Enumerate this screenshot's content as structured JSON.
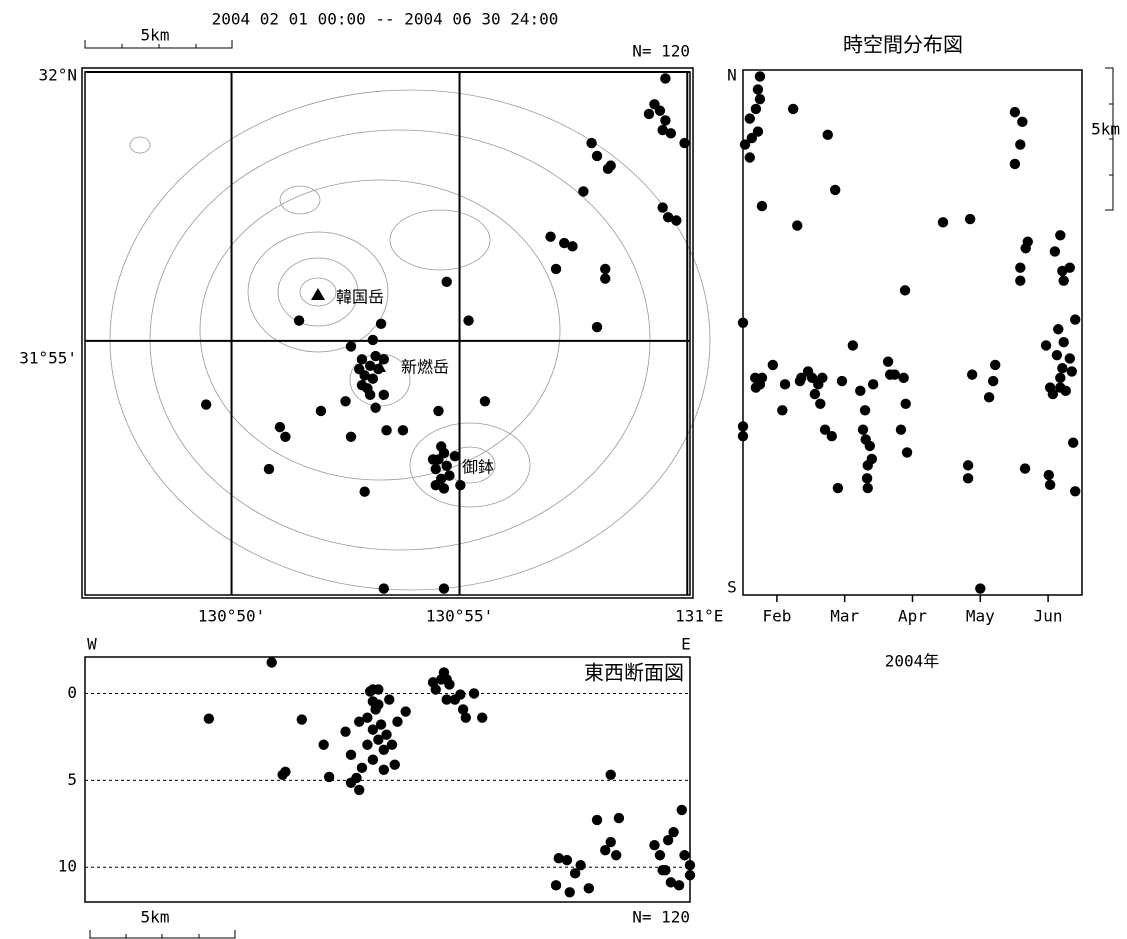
{
  "chart_data": [
    {
      "type": "scatter",
      "title": "2004 02 01 00:00 -- 2004 06 30 24:00",
      "count_label": "N= 120",
      "scale_label": "5km",
      "annotations": [
        "韓国岳",
        "新燃岳",
        "御鉢"
      ],
      "color": "#000000",
      "grid": true,
      "xlim": [
        130.7797,
        131.001
      ],
      "ylim": [
        31.838,
        32.0
      ],
      "xticks": [
        {
          "value": 130.8333,
          "label": "130°50'"
        },
        {
          "value": 130.9167,
          "label": "130°55'"
        },
        {
          "value": 131.0,
          "label": "131°E"
        }
      ],
      "yticks": [
        {
          "value": 31.9167,
          "label": "31°55'"
        },
        {
          "value": 32.0,
          "label": "32°N"
        }
      ],
      "x": [
        130.992,
        130.988,
        130.99,
        130.986,
        130.992,
        130.991,
        130.994,
        130.999,
        130.965,
        130.967,
        130.972,
        130.971,
        130.962,
        130.991,
        130.993,
        130.996,
        130.95,
        130.955,
        130.958,
        130.952,
        130.97,
        130.97,
        130.967,
        130.858,
        130.888,
        130.912,
        130.92,
        130.877,
        130.88,
        130.881,
        130.882,
        130.884,
        130.886,
        130.885,
        130.883,
        130.887,
        130.889,
        130.881,
        130.884,
        130.886,
        130.889,
        130.875,
        130.89,
        130.896,
        130.885,
        130.824,
        130.866,
        130.877,
        130.851,
        130.853,
        130.847,
        130.882,
        130.909,
        130.926,
        130.91,
        130.911,
        130.909,
        130.908,
        130.912,
        130.91,
        130.913,
        130.908,
        130.911,
        130.917,
        130.907,
        130.915,
        130.889,
        130.911
      ],
      "y": [
        31.998,
        31.99,
        31.988,
        31.987,
        31.985,
        31.982,
        31.981,
        31.978,
        31.978,
        31.974,
        31.971,
        31.97,
        31.963,
        31.958,
        31.955,
        31.954,
        31.949,
        31.947,
        31.946,
        31.939,
        31.939,
        31.936,
        31.921,
        31.923,
        31.922,
        31.935,
        31.923,
        31.915,
        31.908,
        31.911,
        31.906,
        31.909,
        31.912,
        31.905,
        31.902,
        31.908,
        31.911,
        31.903,
        31.9,
        31.896,
        31.9,
        31.898,
        31.889,
        31.889,
        31.917,
        31.897,
        31.895,
        31.887,
        31.89,
        31.887,
        31.877,
        31.87,
        31.895,
        31.898,
        31.884,
        31.882,
        31.88,
        31.877,
        31.878,
        31.874,
        31.875,
        31.872,
        31.871,
        31.872,
        31.88,
        31.881,
        31.84,
        31.84
      ]
    },
    {
      "type": "scatter",
      "title": "時空間分布図",
      "xlabel": "2004年",
      "y_end_labels": [
        "N",
        "S"
      ],
      "scale_label": "5km",
      "color": "#000000",
      "xlim": [
        2,
        7
      ],
      "ylim": [
        31.838,
        32.0
      ],
      "xticks": [
        {
          "value": 2.5,
          "label": "Feb"
        },
        {
          "value": 3.5,
          "label": "Mar"
        },
        {
          "value": 4.5,
          "label": "Apr"
        },
        {
          "value": 5.5,
          "label": "May"
        },
        {
          "value": 6.5,
          "label": "Jun"
        }
      ],
      "x": [
        2.25,
        2.22,
        2.25,
        2.1,
        2.19,
        2.03,
        2.13,
        2.22,
        2.1,
        2.28,
        2.0,
        2.0,
        2.0,
        2.18,
        2.25,
        2.28,
        2.19,
        2.74,
        2.8,
        2.84,
        2.62,
        2.58,
        2.44,
        2.86,
        3.25,
        3.36,
        3.02,
        3.11,
        3.17,
        3.06,
        3.14,
        3.21,
        3.31,
        3.4,
        2.96,
        3.62,
        3.46,
        3.73,
        3.8,
        3.81,
        3.87,
        3.9,
        3.84,
        3.83,
        3.84,
        3.92,
        3.77,
        4.14,
        4.17,
        4.24,
        4.37,
        4.4,
        4.33,
        4.42,
        4.39,
        4.95,
        5.35,
        5.38,
        5.32,
        5.32,
        5.63,
        5.69,
        5.72,
        5.5,
        6.01,
        6.12,
        6.01,
        6.09,
        6.2,
        6.17,
        6.09,
        6.09,
        6.16,
        6.47,
        6.51,
        6.53,
        6.68,
        6.6,
        6.71,
        6.73,
        6.82,
        6.9,
        6.65,
        6.63,
        6.73,
        6.71,
        6.82,
        6.68,
        6.53,
        6.57,
        6.68,
        6.85,
        6.76,
        6.87,
        6.9
      ],
      "y": [
        31.998,
        31.994,
        31.991,
        31.985,
        31.988,
        31.977,
        31.979,
        31.981,
        31.973,
        31.958,
        31.922,
        31.89,
        31.887,
        31.905,
        31.903,
        31.905,
        31.902,
        31.988,
        31.952,
        31.904,
        31.903,
        31.895,
        31.909,
        31.905,
        31.98,
        31.963,
        31.905,
        31.903,
        31.905,
        31.9,
        31.897,
        31.889,
        31.887,
        31.871,
        31.907,
        31.915,
        31.904,
        31.901,
        31.895,
        31.886,
        31.884,
        31.88,
        31.878,
        31.874,
        31.871,
        31.903,
        31.889,
        31.91,
        31.906,
        31.906,
        31.905,
        31.897,
        31.889,
        31.882,
        31.932,
        31.953,
        31.954,
        31.906,
        31.878,
        31.874,
        31.899,
        31.904,
        31.909,
        31.84,
        31.987,
        31.984,
        31.971,
        31.977,
        31.947,
        31.945,
        31.939,
        31.935,
        31.877,
        31.915,
        31.875,
        31.872,
        31.949,
        31.944,
        31.938,
        31.935,
        31.939,
        31.923,
        31.92,
        31.912,
        31.916,
        31.908,
        31.911,
        31.905,
        31.902,
        31.9,
        31.902,
        31.907,
        31.901,
        31.885,
        31.87
      ]
    },
    {
      "type": "scatter",
      "title": "東西断面図",
      "x_end_labels": [
        "W",
        "E"
      ],
      "count_label": "N= 120",
      "scale_label": "5km",
      "color": "#000000",
      "xlim": [
        130.7797,
        131.001
      ],
      "ylim": [
        -2.1,
        12
      ],
      "y_inverted": true,
      "grid": true,
      "yticks": [
        0,
        5,
        10
      ],
      "x": [
        130.825,
        130.848,
        130.852,
        130.853,
        130.859,
        130.867,
        130.869,
        130.875,
        130.877,
        130.877,
        130.879,
        130.88,
        130.881,
        130.88,
        130.883,
        130.884,
        130.885,
        130.886,
        130.885,
        130.887,
        130.887,
        130.888,
        130.889,
        130.89,
        130.889,
        130.891,
        130.892,
        130.893,
        130.894,
        130.897,
        130.885,
        130.887,
        130.883,
        130.885,
        130.907,
        130.91,
        130.911,
        130.912,
        130.908,
        130.913,
        130.915,
        130.917,
        130.918,
        130.922,
        130.925,
        130.919,
        130.912,
        130.952,
        130.953,
        130.956,
        130.959,
        130.961,
        130.964,
        130.957,
        130.967,
        130.97,
        130.972,
        130.975,
        130.974,
        130.972,
        130.988,
        130.99,
        130.992,
        130.993,
        130.995,
        130.998,
        130.999,
        131.001,
        131.001,
        130.994,
        130.997,
        130.991
      ],
      "y": [
        1.45,
        -1.79,
        4.68,
        4.51,
        1.5,
        2.95,
        4.8,
        2.2,
        3.53,
        5.14,
        4.86,
        1.62,
        4.28,
        5.55,
        1.39,
        -0.12,
        0.46,
        0.92,
        2.08,
        0.64,
        2.66,
        1.79,
        3.24,
        2.37,
        4.39,
        0.35,
        2.95,
        4.1,
        1.62,
        1.04,
        -0.23,
        -0.23,
        2.95,
        3.81,
        -0.64,
        -0.81,
        -1.21,
        -0.81,
        -0.23,
        -0.52,
        0.35,
        0.06,
        0.92,
        0,
        1.39,
        1.39,
        0.35,
        11.04,
        9.48,
        9.59,
        10.35,
        9.88,
        11.21,
        11.44,
        7.28,
        9.02,
        8.55,
        7.17,
        9.31,
        4.68,
        8.73,
        9.31,
        10.17,
        8.44,
        7.98,
        6.7,
        9.31,
        9.88,
        10.46,
        10.87,
        11.04,
        10.17
      ]
    }
  ]
}
